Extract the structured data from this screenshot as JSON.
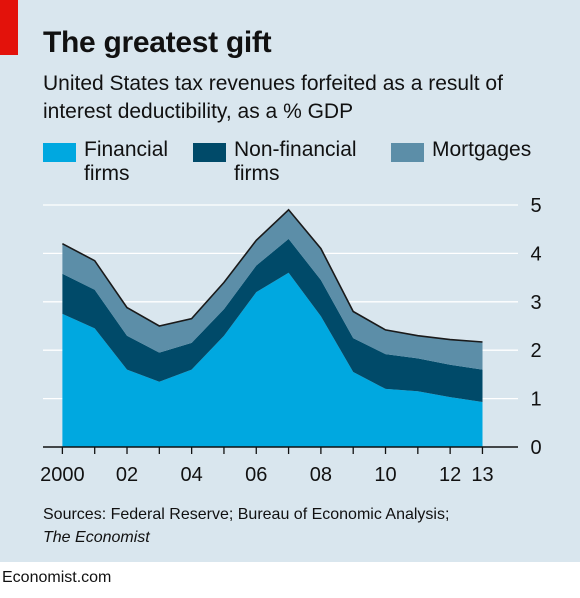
{
  "title": "The greatest gift",
  "subtitle": "United States tax revenues forfeited as a result of interest deductibility, as a % GDP",
  "source": {
    "text": "Sources: Federal Reserve; Bureau of Economic Analysis;",
    "publication": "The Economist"
  },
  "footer": "Economist.com",
  "colors": {
    "background": "#d9e6ee",
    "accent": "#e3120b"
  },
  "legend": [
    {
      "label": "Financial\nfirms",
      "color": "#00a8e0"
    },
    {
      "label": "Non-financial\nfirms",
      "color": "#004a69"
    },
    {
      "label": "Mortgages",
      "color": "#5c8ea8"
    }
  ],
  "chart_data": {
    "type": "area",
    "stacked": true,
    "x": [
      2000,
      2001,
      2002,
      2003,
      2004,
      2005,
      2006,
      2007,
      2008,
      2009,
      2010,
      2011,
      2012,
      2013
    ],
    "x_tick_labels": [
      {
        "x": 2000,
        "label": "2000"
      },
      {
        "x": 2002,
        "label": "02"
      },
      {
        "x": 2004,
        "label": "04"
      },
      {
        "x": 2006,
        "label": "06"
      },
      {
        "x": 2008,
        "label": "08"
      },
      {
        "x": 2010,
        "label": "10"
      },
      {
        "x": 2012,
        "label": "12"
      },
      {
        "x": 2013,
        "label": "13"
      }
    ],
    "xlim": [
      1999.4,
      2014.1
    ],
    "ylim": [
      0,
      5
    ],
    "y_ticks": [
      0,
      1,
      2,
      3,
      4,
      5
    ],
    "y_axis_side": "right",
    "grid": true,
    "legend_position": "top",
    "series": [
      {
        "name": "Financial firms",
        "color": "#00a8e0",
        "values": [
          2.75,
          2.45,
          1.6,
          1.35,
          1.6,
          2.3,
          3.2,
          3.6,
          2.7,
          1.55,
          1.2,
          1.15,
          1.03,
          0.93
        ]
      },
      {
        "name": "Non-financial firms",
        "color": "#004a69",
        "values": [
          0.83,
          0.8,
          0.7,
          0.6,
          0.55,
          0.55,
          0.55,
          0.7,
          0.75,
          0.7,
          0.72,
          0.68,
          0.67,
          0.67
        ]
      },
      {
        "name": "Mortgages",
        "color": "#5c8ea8",
        "values": [
          0.62,
          0.6,
          0.58,
          0.55,
          0.5,
          0.55,
          0.52,
          0.6,
          0.65,
          0.55,
          0.5,
          0.47,
          0.52,
          0.57
        ]
      }
    ]
  }
}
